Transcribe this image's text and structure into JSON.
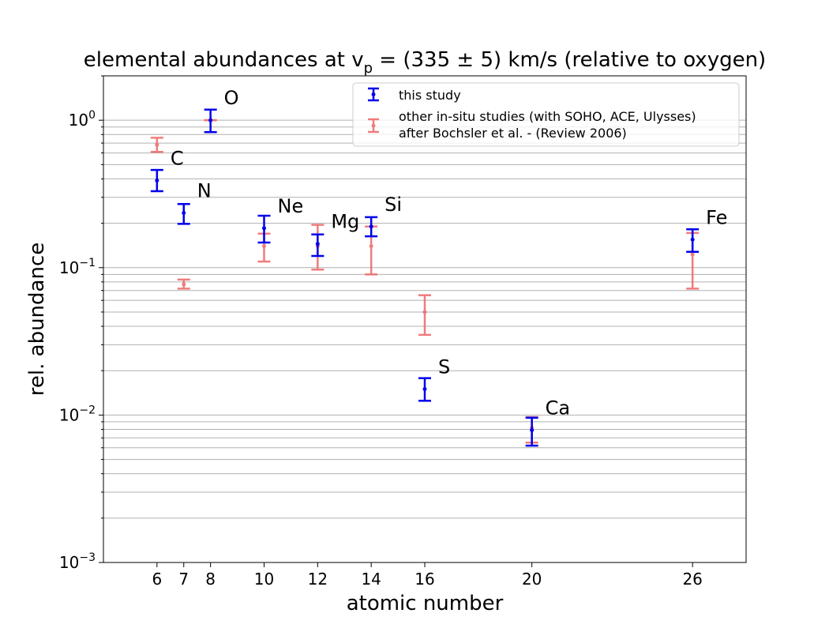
{
  "chart_data": {
    "type": "scatter",
    "title_main": "elemental abundances at v",
    "title_sub": "p",
    "title_rest": " = (335 ± 5) km/s (relative to oxygen)",
    "xlabel": "atomic number",
    "ylabel": "rel. abundance",
    "xlim": [
      4,
      28
    ],
    "ylim": [
      0.001,
      2.0
    ],
    "yscale": "log",
    "grid": "y-major-and-minor",
    "legend_position": "top-right",
    "x_ticks": [
      6,
      7,
      8,
      10,
      12,
      14,
      16,
      20,
      26
    ],
    "y_ticks": [
      {
        "value": 0.001,
        "base": "10",
        "exp": "−3"
      },
      {
        "value": 0.01,
        "base": "10",
        "exp": "−2"
      },
      {
        "value": 0.1,
        "base": "10",
        "exp": "−1"
      },
      {
        "value": 1,
        "base": "10",
        "exp": "0"
      }
    ],
    "series": [
      {
        "name": "this study",
        "color": "#0000ee",
        "points": [
          {
            "x": 6,
            "y": 0.39,
            "lo": 0.33,
            "hi": 0.46
          },
          {
            "x": 7,
            "y": 0.235,
            "lo": 0.198,
            "hi": 0.27
          },
          {
            "x": 8,
            "y": 1.0,
            "lo": 0.83,
            "hi": 1.18
          },
          {
            "x": 10,
            "y": 0.185,
            "lo": 0.148,
            "hi": 0.225
          },
          {
            "x": 12,
            "y": 0.145,
            "lo": 0.12,
            "hi": 0.168
          },
          {
            "x": 14,
            "y": 0.19,
            "lo": 0.163,
            "hi": 0.22
          },
          {
            "x": 16,
            "y": 0.015,
            "lo": 0.0125,
            "hi": 0.0178
          },
          {
            "x": 20,
            "y": 0.0079,
            "lo": 0.0062,
            "hi": 0.0096
          },
          {
            "x": 26,
            "y": 0.155,
            "lo": 0.128,
            "hi": 0.182
          }
        ]
      },
      {
        "name_line1": "other in-situ studies (with SOHO, ACE, Ulysses)",
        "name_line2": "after Bochsler et al. - (Review 2006)",
        "color": "#ee6666",
        "points": [
          {
            "x": 6,
            "y": 0.68,
            "lo": 0.61,
            "hi": 0.76
          },
          {
            "x": 7,
            "y": 0.077,
            "lo": 0.072,
            "hi": 0.083
          },
          {
            "x": 8,
            "y": 1.0,
            "lo": 1.0,
            "hi": 1.0
          },
          {
            "x": 10,
            "y": 0.14,
            "lo": 0.11,
            "hi": 0.17
          },
          {
            "x": 12,
            "y": 0.14,
            "lo": 0.097,
            "hi": 0.195
          },
          {
            "x": 14,
            "y": 0.14,
            "lo": 0.09,
            "hi": 0.19
          },
          {
            "x": 16,
            "y": 0.05,
            "lo": 0.035,
            "hi": 0.065
          },
          {
            "x": 20,
            "y": 0.0082,
            "lo": 0.0065,
            "hi": 0.0097
          },
          {
            "x": 26,
            "y": 0.123,
            "lo": 0.072,
            "hi": 0.172
          }
        ]
      }
    ],
    "annotations": [
      {
        "text": "C",
        "x": 6,
        "y": 0.39
      },
      {
        "text": "N",
        "x": 7,
        "y": 0.235
      },
      {
        "text": "O",
        "x": 8,
        "y": 1.0
      },
      {
        "text": "Ne",
        "x": 10,
        "y": 0.185
      },
      {
        "text": "Mg",
        "x": 12,
        "y": 0.145
      },
      {
        "text": "Si",
        "x": 14,
        "y": 0.19
      },
      {
        "text": "S",
        "x": 16,
        "y": 0.015
      },
      {
        "text": "Ca",
        "x": 20,
        "y": 0.0079
      },
      {
        "text": "Fe",
        "x": 26,
        "y": 0.155
      }
    ]
  }
}
